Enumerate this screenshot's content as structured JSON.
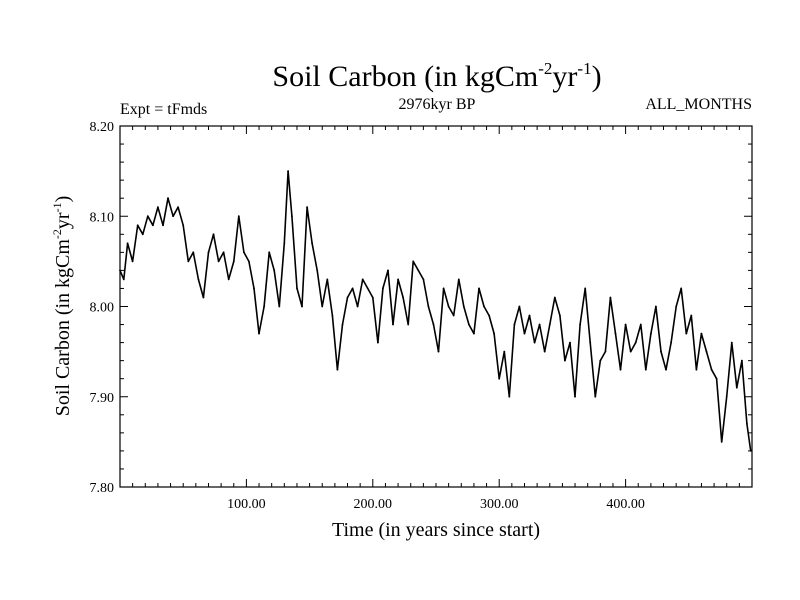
{
  "chart_data": {
    "type": "line",
    "title": {
      "main": "Soil Carbon (in kgCm",
      "exp1": "-2",
      "mid": "yr",
      "exp2": "-1",
      "close": ")"
    },
    "subtitle": "2976kyr BP",
    "experiment": "Expt = tFmds",
    "period": "ALL_MONTHS",
    "xlabel": "Time (in years since start)",
    "ylabel": {
      "main": "Soil Carbon (in kgCm",
      "exp1": "-2",
      "mid": "yr",
      "exp2": "-1",
      "close": ")"
    },
    "xlim": [
      0,
      500
    ],
    "ylim": [
      7.8,
      8.2
    ],
    "xticks": [
      100,
      200,
      300,
      400
    ],
    "xtick_labels": [
      "100.00",
      "200.00",
      "300.00",
      "400.00"
    ],
    "yticks": [
      7.8,
      7.9,
      8.0,
      8.1,
      8.2
    ],
    "ytick_labels": [
      "7.80",
      "7.90",
      "8.00",
      "8.10",
      "8.20"
    ],
    "series": [
      {
        "name": "Soil Carbon",
        "color": "#000000",
        "x": [
          0,
          3,
          6,
          10,
          14,
          18,
          22,
          26,
          30,
          34,
          38,
          42,
          46,
          50,
          54,
          58,
          62,
          66,
          70,
          74,
          78,
          82,
          86,
          90,
          94,
          98,
          102,
          106,
          110,
          114,
          118,
          122,
          126,
          130,
          133,
          136,
          140,
          144,
          148,
          152,
          156,
          160,
          164,
          168,
          172,
          176,
          180,
          184,
          188,
          192,
          196,
          200,
          204,
          208,
          212,
          216,
          220,
          224,
          228,
          232,
          236,
          240,
          244,
          248,
          252,
          256,
          260,
          264,
          268,
          272,
          276,
          280,
          284,
          288,
          292,
          296,
          300,
          304,
          308,
          312,
          316,
          320,
          324,
          328,
          332,
          336,
          340,
          344,
          348,
          352,
          356,
          360,
          364,
          368,
          372,
          376,
          380,
          384,
          388,
          392,
          396,
          400,
          404,
          408,
          412,
          416,
          420,
          424,
          428,
          432,
          436,
          440,
          444,
          448,
          452,
          456,
          460,
          464,
          468,
          472,
          476,
          480,
          484,
          488,
          492,
          496,
          499
        ],
        "values": [
          8.04,
          8.03,
          8.07,
          8.05,
          8.09,
          8.08,
          8.1,
          8.09,
          8.11,
          8.09,
          8.12,
          8.1,
          8.11,
          8.09,
          8.05,
          8.06,
          8.03,
          8.01,
          8.06,
          8.08,
          8.05,
          8.06,
          8.03,
          8.05,
          8.1,
          8.06,
          8.05,
          8.02,
          7.97,
          8.0,
          8.06,
          8.04,
          8.0,
          8.07,
          8.15,
          8.1,
          8.02,
          8.0,
          8.11,
          8.07,
          8.04,
          8.0,
          8.03,
          7.99,
          7.93,
          7.98,
          8.01,
          8.02,
          8.0,
          8.03,
          8.02,
          8.01,
          7.96,
          8.02,
          8.04,
          7.98,
          8.03,
          8.01,
          7.98,
          8.05,
          8.04,
          8.03,
          8.0,
          7.98,
          7.95,
          8.02,
          8.0,
          7.99,
          8.03,
          8.0,
          7.98,
          7.97,
          8.02,
          8.0,
          7.99,
          7.97,
          7.92,
          7.95,
          7.9,
          7.98,
          8.0,
          7.97,
          7.99,
          7.96,
          7.98,
          7.95,
          7.98,
          8.01,
          7.99,
          7.94,
          7.96,
          7.9,
          7.98,
          8.02,
          7.96,
          7.9,
          7.94,
          7.95,
          8.01,
          7.97,
          7.93,
          7.98,
          7.95,
          7.96,
          7.98,
          7.93,
          7.97,
          8.0,
          7.95,
          7.93,
          7.96,
          8.0,
          8.02,
          7.97,
          7.99,
          7.93,
          7.97,
          7.95,
          7.93,
          7.92,
          7.85,
          7.9,
          7.96,
          7.91,
          7.94,
          7.87,
          7.84
        ]
      }
    ]
  }
}
